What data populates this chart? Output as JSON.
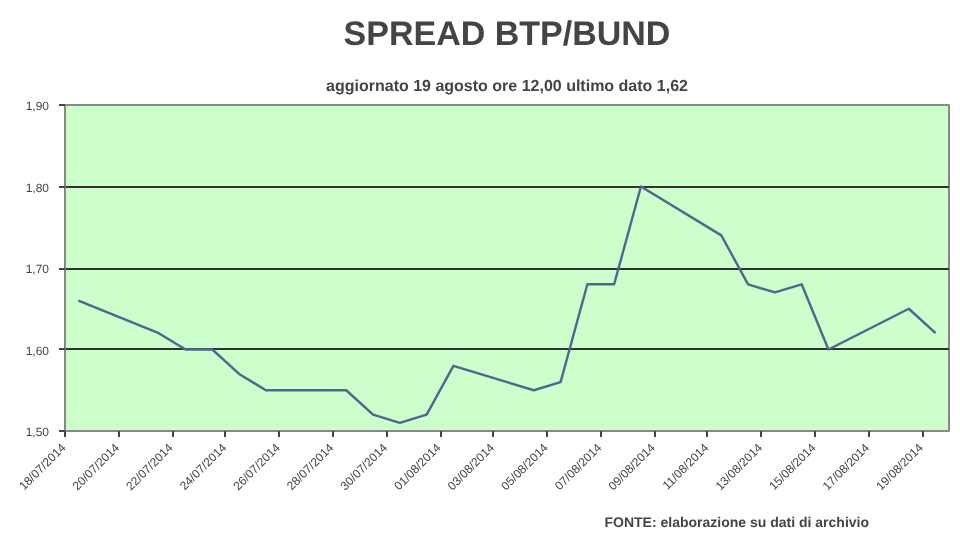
{
  "chart_data": {
    "type": "line",
    "title": "SPREAD BTP/BUND",
    "subtitle": "aggiornato 19 agosto ore 12,00 ultimo dato 1,62",
    "x": [
      "2014-07-18T12:00",
      "2014-07-21T12:00",
      "2014-07-22T12:00",
      "2014-07-23T12:00",
      "2014-07-24T12:00",
      "2014-07-25T12:00",
      "2014-07-28T12:00",
      "2014-07-29T12:00",
      "2014-07-30T12:00",
      "2014-07-31T12:00",
      "2014-08-01T12:00",
      "2014-08-04T12:00",
      "2014-08-05T12:00",
      "2014-08-06T12:00",
      "2014-08-07T12:00",
      "2014-08-08T12:00",
      "2014-08-11T12:00",
      "2014-08-12T12:00",
      "2014-08-13T12:00",
      "2014-08-14T12:00",
      "2014-08-15T12:00",
      "2014-08-18T12:00",
      "2014-08-19T12:00"
    ],
    "series": [
      {
        "color": "#4a6a8c",
        "values": [
          1.66,
          1.62,
          1.6,
          1.6,
          1.57,
          1.55,
          1.55,
          1.52,
          1.51,
          1.52,
          1.58,
          1.55,
          1.56,
          1.68,
          1.68,
          1.8,
          1.74,
          1.68,
          1.67,
          1.68,
          1.6,
          1.65,
          1.62
        ]
      }
    ],
    "xlim": [
      "2014-07-18",
      "2014-08-20"
    ],
    "xticks": [
      {
        "value": "2014-07-18",
        "label": "18/07/2014"
      },
      {
        "value": "2014-07-20",
        "label": "20/07/2014"
      },
      {
        "value": "2014-07-22",
        "label": "22/07/2014"
      },
      {
        "value": "2014-07-24",
        "label": "24/07/2014"
      },
      {
        "value": "2014-07-26",
        "label": "26/07/2014"
      },
      {
        "value": "2014-07-28",
        "label": "28/07/2014"
      },
      {
        "value": "2014-07-30",
        "label": "30/07/2014"
      },
      {
        "value": "2014-08-01",
        "label": "01/08/2014"
      },
      {
        "value": "2014-08-03",
        "label": "03/08/2014"
      },
      {
        "value": "2014-08-05",
        "label": "05/08/2014"
      },
      {
        "value": "2014-08-07",
        "label": "07/08/2014"
      },
      {
        "value": "2014-08-09",
        "label": "09/08/2014"
      },
      {
        "value": "2014-08-11",
        "label": "11/08/2014"
      },
      {
        "value": "2014-08-13",
        "label": "13/08/2014"
      },
      {
        "value": "2014-08-15",
        "label": "15/08/2014"
      },
      {
        "value": "2014-08-17",
        "label": "17/08/2014"
      },
      {
        "value": "2014-08-19",
        "label": "19/08/2014"
      }
    ],
    "ylim": [
      1.5,
      1.9
    ],
    "yticks": [
      {
        "value": 1.5,
        "label": "1,50"
      },
      {
        "value": 1.6,
        "label": "1,60"
      },
      {
        "value": 1.7,
        "label": "1,70"
      },
      {
        "value": 1.8,
        "label": "1,80"
      },
      {
        "value": 1.9,
        "label": "1,90"
      }
    ],
    "grid": "y",
    "marker": "none",
    "line_style": "solid",
    "annotations": [
      "FONTE: elaborazione su dati di archivio"
    ]
  }
}
